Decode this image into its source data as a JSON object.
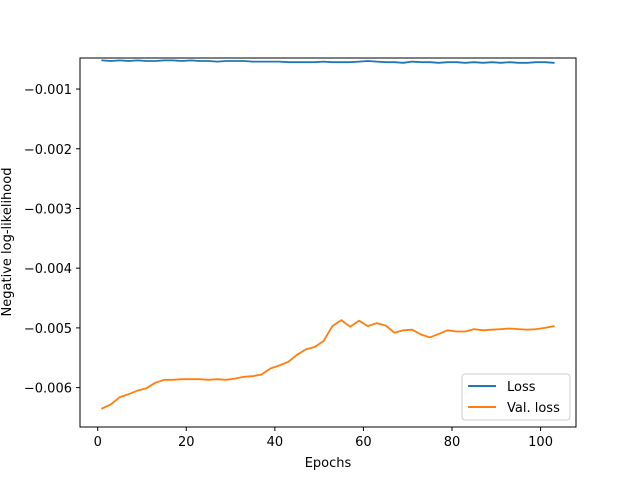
{
  "chart_data": {
    "type": "line",
    "title": "",
    "xlabel": "Epochs",
    "ylabel": "Negative log-likelihood",
    "xlim": [
      -4,
      108
    ],
    "ylim": [
      -0.00666,
      -0.00048
    ],
    "x_ticks": [
      0,
      20,
      40,
      60,
      80,
      100
    ],
    "x_tick_labels": [
      "0",
      "20",
      "40",
      "60",
      "80",
      "100"
    ],
    "y_ticks": [
      -0.006,
      -0.005,
      -0.004,
      -0.003,
      -0.002,
      -0.001
    ],
    "y_tick_labels": [
      "−0.006",
      "−0.005",
      "−0.004",
      "−0.003",
      "−0.002",
      "−0.001"
    ],
    "grid": false,
    "legend": {
      "placement": "lower-right"
    },
    "series": [
      {
        "name": "Loss",
        "color": "#1f77b4",
        "x": [
          1,
          3,
          5,
          7,
          9,
          11,
          13,
          15,
          17,
          19,
          21,
          23,
          25,
          27,
          29,
          31,
          33,
          35,
          37,
          39,
          41,
          43,
          45,
          47,
          49,
          51,
          53,
          55,
          57,
          59,
          61,
          63,
          65,
          67,
          69,
          71,
          73,
          75,
          77,
          79,
          81,
          83,
          85,
          87,
          89,
          91,
          93,
          95,
          97,
          99,
          101,
          103
        ],
        "values": [
          -0.00052,
          -0.00053,
          -0.00052,
          -0.00053,
          -0.00052,
          -0.00053,
          -0.00053,
          -0.00052,
          -0.00052,
          -0.00053,
          -0.00052,
          -0.00053,
          -0.00053,
          -0.00054,
          -0.00053,
          -0.00053,
          -0.00053,
          -0.00054,
          -0.00054,
          -0.00054,
          -0.00054,
          -0.00055,
          -0.00055,
          -0.00055,
          -0.00055,
          -0.00054,
          -0.00055,
          -0.00055,
          -0.00055,
          -0.00054,
          -0.00053,
          -0.00054,
          -0.00055,
          -0.00055,
          -0.00056,
          -0.00054,
          -0.00055,
          -0.00055,
          -0.00056,
          -0.00055,
          -0.00055,
          -0.00056,
          -0.00055,
          -0.00056,
          -0.00055,
          -0.00056,
          -0.00055,
          -0.00056,
          -0.00056,
          -0.00055,
          -0.00055,
          -0.00056
        ]
      },
      {
        "name": "Val. loss",
        "color": "#ff7f0e",
        "x": [
          1,
          3,
          5,
          7,
          9,
          11,
          13,
          15,
          17,
          19,
          21,
          23,
          25,
          27,
          29,
          31,
          33,
          35,
          37,
          39,
          41,
          43,
          45,
          47,
          49,
          51,
          53,
          55,
          57,
          59,
          61,
          63,
          65,
          67,
          69,
          71,
          73,
          75,
          77,
          79,
          81,
          83,
          85,
          87,
          89,
          91,
          93,
          95,
          97,
          99,
          101,
          103
        ],
        "values": [
          -0.00635,
          -0.00628,
          -0.00616,
          -0.00611,
          -0.00605,
          -0.00601,
          -0.00592,
          -0.00587,
          -0.00587,
          -0.00586,
          -0.00586,
          -0.00586,
          -0.00587,
          -0.00586,
          -0.00587,
          -0.00585,
          -0.00582,
          -0.00581,
          -0.00578,
          -0.00568,
          -0.00563,
          -0.00557,
          -0.00545,
          -0.00536,
          -0.00532,
          -0.00522,
          -0.00497,
          -0.00487,
          -0.00498,
          -0.00488,
          -0.00497,
          -0.00492,
          -0.00496,
          -0.00508,
          -0.00504,
          -0.00503,
          -0.00511,
          -0.00516,
          -0.0051,
          -0.00504,
          -0.00506,
          -0.00506,
          -0.00502,
          -0.00504,
          -0.00503,
          -0.00502,
          -0.00501,
          -0.00502,
          -0.00503,
          -0.00502,
          -0.005,
          -0.00497
        ]
      }
    ]
  }
}
